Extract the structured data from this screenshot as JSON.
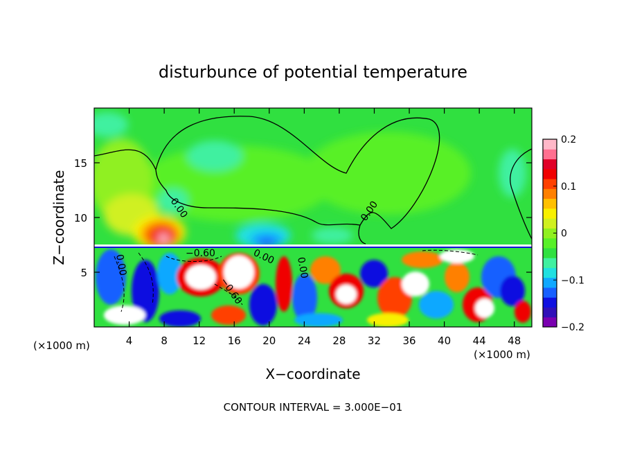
{
  "chart_data": {
    "type": "heatmap",
    "title": "disturbunce of potential temperature",
    "xlabel": "X−coordinate",
    "ylabel": "Z−coordinate",
    "x_unit_left": "(×1000 m)",
    "x_unit_right": "(×1000 m)",
    "xlim": [
      0,
      50
    ],
    "ylim": [
      0,
      20
    ],
    "x_ticks": [
      4,
      8,
      12,
      16,
      20,
      24,
      28,
      32,
      36,
      40,
      44,
      48
    ],
    "y_ticks": [
      5,
      10,
      15
    ],
    "colorbar": {
      "min": -0.2,
      "max": 0.2,
      "tick_labels": [
        "0.2",
        "0.1",
        "0",
        "−0.1",
        "−0.2"
      ],
      "tick_values": [
        0.2,
        0.1,
        0,
        -0.1,
        -0.2
      ],
      "colors": [
        "#7a00b0",
        "#3010b8",
        "#1010e0",
        "#1860ff",
        "#10a8ff",
        "#20e0e0",
        "#40f0a0",
        "#30e040",
        "#58f028",
        "#90f020",
        "#d0f020",
        "#f8f000",
        "#ffc000",
        "#ff8000",
        "#ff4000",
        "#f00000",
        "#e00028",
        "#ff7090",
        "#ffb8c8"
      ]
    },
    "contour_labels": [
      "0.00",
      "0.00",
      "0.00",
      "−0.60",
      "0.00",
      "0.00",
      "−0.60"
    ],
    "contour_interval_text": "CONTOUR INTERVAL = 3.000E−01",
    "features": [
      {
        "x": 7.5,
        "z": 10.5,
        "value": 0.2
      },
      {
        "x": 19.5,
        "z": 8.5,
        "value": -0.1
      },
      {
        "x": 3,
        "z": 14,
        "value": 0.05
      },
      {
        "x": 13,
        "z": 6,
        "value": 0.2
      },
      {
        "x": 18,
        "z": 5.5,
        "value": 0.2
      },
      {
        "x": 27,
        "z": 5,
        "value": 0.15
      },
      {
        "x": 33,
        "z": 3,
        "value": 0.2
      },
      {
        "x": 44,
        "z": 2,
        "value": 0.2
      },
      {
        "x": 46,
        "z": 6,
        "value": -0.15
      }
    ],
    "grid": false,
    "legend_placement": "right"
  }
}
